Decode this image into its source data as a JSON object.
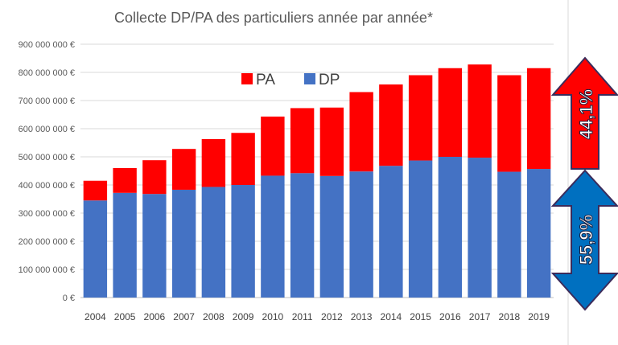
{
  "chart_data": {
    "type": "bar",
    "stacked": true,
    "title": "Collecte DP/PA des particuliers année par année*",
    "xlabel": "",
    "ylabel": "",
    "ylim": [
      0,
      900000000
    ],
    "y_ticks": [
      "0 €",
      "100 000 000 €",
      "200 000 000 €",
      "300 000 000 €",
      "400 000 000 €",
      "500 000 000 €",
      "600 000 000 €",
      "700 000 000 €",
      "800 000 000 €",
      "900 000 000 €"
    ],
    "categories": [
      "2004",
      "2005",
      "2006",
      "2007",
      "2008",
      "2009",
      "2010",
      "2011",
      "2012",
      "2013",
      "2014",
      "2015",
      "2016",
      "2017",
      "2018",
      "2019"
    ],
    "series": [
      {
        "name": "DP",
        "color": "#4472C4",
        "values": [
          345000000,
          372000000,
          368000000,
          383000000,
          393000000,
          400000000,
          433000000,
          442000000,
          432000000,
          448000000,
          468000000,
          487000000,
          500000000,
          497000000,
          447000000,
          457000000
        ]
      },
      {
        "name": "PA",
        "color": "#FF0000",
        "values": [
          70000000,
          88000000,
          120000000,
          145000000,
          170000000,
          185000000,
          210000000,
          231000000,
          243000000,
          282000000,
          289000000,
          303000000,
          315000000,
          331000000,
          343000000,
          358000000
        ]
      }
    ],
    "legend": {
      "position": "top-center",
      "order": [
        "PA",
        "DP"
      ]
    },
    "grid": true,
    "annotations": [
      {
        "text": "44,1%",
        "series": "PA",
        "color": "#FF0000"
      },
      {
        "text": "55,9%",
        "series": "DP",
        "color": "#0070C0"
      }
    ]
  }
}
